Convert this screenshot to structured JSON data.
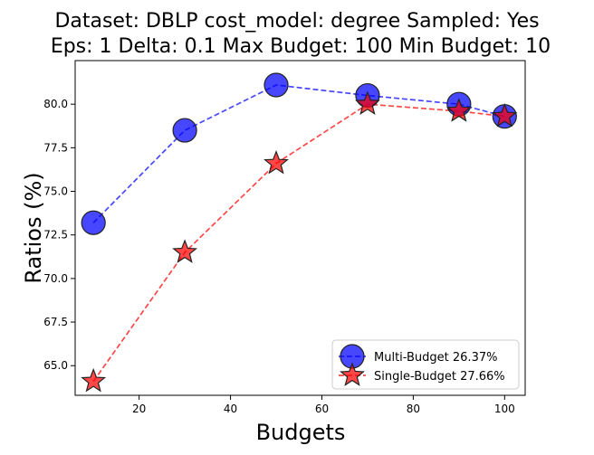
{
  "chart_data": {
    "type": "line",
    "title_lines": [
      "Dataset: DBLP cost_model: degree Sampled: Yes",
      "Eps: 1 Delta: 0.1 Max Budget: 100 Min Budget: 10"
    ],
    "xlabel": "Budgets",
    "ylabel": "Ratios (%)",
    "xlim": [
      6,
      104.5
    ],
    "ylim": [
      63.3,
      82.5
    ],
    "x_ticks": [
      20,
      40,
      60,
      80,
      100
    ],
    "y_ticks": [
      65.0,
      67.5,
      70.0,
      72.5,
      75.0,
      77.5,
      80.0
    ],
    "y_tick_labels": [
      "65.0",
      "67.5",
      "70.0",
      "72.5",
      "75.0",
      "77.5",
      "80.0"
    ],
    "grid": false,
    "legend_position": "lower-right",
    "x": [
      10,
      30,
      50,
      70,
      90,
      100
    ],
    "series": [
      {
        "name": "Multi-Budget 26.37%",
        "values": [
          73.2,
          78.5,
          81.1,
          80.5,
          80.0,
          79.3
        ],
        "color": "#0000ff",
        "marker": "circle",
        "line_style": "dashed"
      },
      {
        "name": "Single-Budget 27.66%",
        "values": [
          64.1,
          71.5,
          76.6,
          80.0,
          79.6,
          79.3
        ],
        "color": "#ff0000",
        "marker": "star",
        "line_style": "dashed"
      }
    ]
  }
}
